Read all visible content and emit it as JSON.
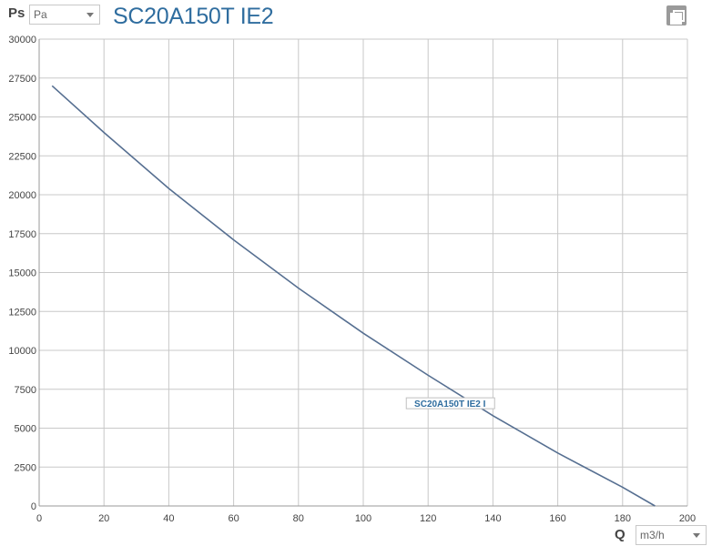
{
  "header": {
    "y_axis_letter": "Ps",
    "pressure_unit": "Pa",
    "title": "SC20A150T IE2"
  },
  "footer": {
    "x_axis_letter": "Q",
    "flow_unit": "m3/h"
  },
  "icons": {
    "copy": "copy-icon",
    "dropdown": "chevron-down-icon"
  },
  "colors": {
    "line": "#566f91",
    "grid": "#c8c8c8",
    "title": "#2f6d9f"
  },
  "chart_data": {
    "type": "line",
    "title": "SC20A150T IE2",
    "xlabel": "Q",
    "ylabel": "Ps",
    "xlim": [
      0,
      200
    ],
    "ylim": [
      0,
      30000
    ],
    "x_ticks": [
      0,
      20,
      40,
      60,
      80,
      100,
      120,
      140,
      160,
      180,
      200
    ],
    "y_ticks": [
      0,
      2500,
      5000,
      7500,
      10000,
      12500,
      15000,
      17500,
      20000,
      22500,
      25000,
      27500,
      30000
    ],
    "grid": true,
    "series": [
      {
        "name": "SC20A150T IE2 I",
        "color": "#566f91",
        "x": [
          4,
          20,
          40,
          60,
          80,
          100,
          120,
          140,
          160,
          180,
          190
        ],
        "y": [
          27000,
          24000,
          20400,
          17100,
          14000,
          11100,
          8400,
          5800,
          3400,
          1200,
          0
        ]
      }
    ]
  }
}
